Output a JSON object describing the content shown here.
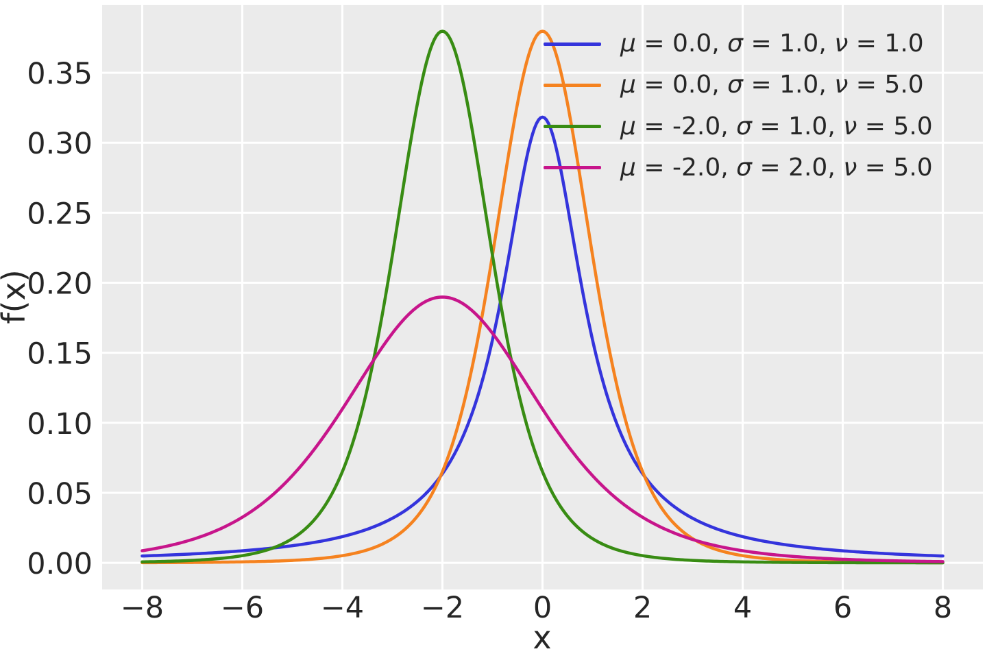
{
  "chart_data": {
    "type": "line",
    "title": "",
    "xlabel": "x",
    "ylabel": "f(x)",
    "xlim": [
      -8.8,
      8.8
    ],
    "ylim": [
      -0.019,
      0.3985
    ],
    "x_ticks": [
      -8,
      -6,
      -4,
      -2,
      0,
      2,
      4,
      6,
      8
    ],
    "x_tick_labels": [
      "−8",
      "−6",
      "−4",
      "−2",
      "0",
      "2",
      "4",
      "6",
      "8"
    ],
    "y_ticks": [
      0.0,
      0.05,
      0.1,
      0.15,
      0.2,
      0.25,
      0.3,
      0.35
    ],
    "y_tick_labels": [
      "0.00",
      "0.05",
      "0.10",
      "0.15",
      "0.20",
      "0.25",
      "0.30",
      "0.35"
    ],
    "grid": true,
    "grid_color": "#FFFFFF",
    "plot_bg_color": "#EBEBEB",
    "text_color": "#262626",
    "legend_position": "upper right",
    "series": [
      {
        "label": "μ = 0.0, σ = 1.0, ν = 1.0",
        "color": "#3434DC",
        "distribution": "student_t",
        "params": {
          "mu": 0.0,
          "sigma": 1.0,
          "nu": 1.0
        },
        "peak_density": 0.31831,
        "x_range": [
          -8,
          8
        ],
        "x_step": 0.5,
        "y_samples": [
          0.0049,
          0.00556,
          0.00637,
          0.00736,
          0.0086,
          0.01019,
          0.01224,
          0.01498,
          0.01872,
          0.02402,
          0.03183,
          0.0439,
          0.06366,
          0.09794,
          0.15915,
          0.25465,
          0.31831,
          0.25465,
          0.15915,
          0.09794,
          0.06366,
          0.0439,
          0.03183,
          0.02402,
          0.01872,
          0.01498,
          0.01224,
          0.01019,
          0.0086,
          0.00736,
          0.00637,
          0.00556,
          0.0049
        ]
      },
      {
        "label": "μ = 0.0, σ = 1.0, ν = 5.0",
        "color": "#F5821F",
        "distribution": "student_t",
        "params": {
          "mu": 0.0,
          "sigma": 1.0,
          "nu": 5.0
        },
        "peak_density": 0.37961,
        "x_range": [
          -8,
          8
        ],
        "x_step": 0.5,
        "y_samples": [
          0.00014,
          0.00021,
          0.0003,
          0.00045,
          0.00069,
          0.00108,
          0.00176,
          0.00295,
          0.00512,
          0.00924,
          0.01729,
          0.03333,
          0.06509,
          0.12452,
          0.21968,
          0.32791,
          0.37961,
          0.32791,
          0.21968,
          0.12452,
          0.06509,
          0.03333,
          0.01729,
          0.00924,
          0.00512,
          0.00295,
          0.00176,
          0.00108,
          0.00069,
          0.00045,
          0.0003,
          0.00021,
          0.00014
        ]
      },
      {
        "label": "μ = -2.0, σ = 1.0, ν = 5.0",
        "color": "#388C13",
        "distribution": "student_t",
        "params": {
          "mu": -2.0,
          "sigma": 1.0,
          "nu": 5.0
        },
        "peak_density": 0.37961,
        "x_range": [
          -8,
          8
        ],
        "x_step": 0.5,
        "y_samples": [
          0.00069,
          0.00108,
          0.00176,
          0.00295,
          0.00512,
          0.00924,
          0.01729,
          0.03333,
          0.06509,
          0.12452,
          0.21968,
          0.32791,
          0.37961,
          0.32791,
          0.21968,
          0.12452,
          0.06509,
          0.03333,
          0.01729,
          0.00924,
          0.00512,
          0.00295,
          0.00176,
          0.00108,
          0.00069,
          0.00045,
          0.0003,
          0.00021,
          0.00014,
          0.0001,
          7e-05,
          5e-05,
          4e-05
        ]
      },
      {
        "label": "μ = -2.0, σ = 2.0, ν = 5.0",
        "color": "#C7158B",
        "distribution": "student_t",
        "params": {
          "mu": -2.0,
          "sigma": 2.0,
          "nu": 5.0
        },
        "peak_density": 0.1898,
        "x_range": [
          -8,
          8
        ],
        "x_step": 0.5,
        "y_samples": [
          0.00865,
          0.01197,
          0.01666,
          0.02329,
          0.03255,
          0.04527,
          0.06226,
          0.08393,
          0.10984,
          0.13784,
          0.16396,
          0.18286,
          0.1898,
          0.18286,
          0.16396,
          0.13784,
          0.10984,
          0.08393,
          0.06226,
          0.04527,
          0.03255,
          0.02329,
          0.01666,
          0.01197,
          0.00865,
          0.00629,
          0.00462,
          0.00343,
          0.00256,
          0.00193,
          0.00147,
          0.00113,
          0.00088
        ]
      }
    ]
  }
}
